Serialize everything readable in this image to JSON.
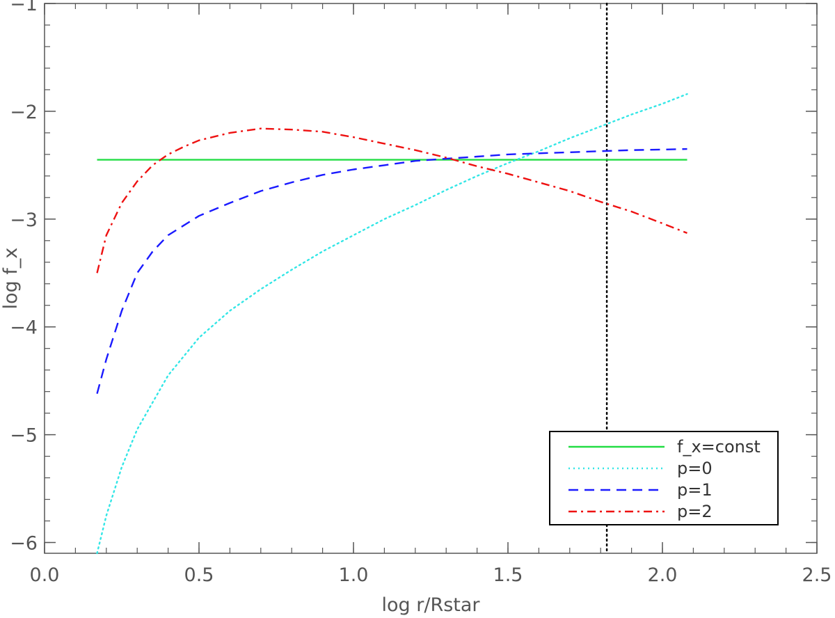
{
  "chart_data": {
    "type": "line",
    "title": "",
    "xlabel": "log r/Rstar",
    "ylabel": "log f_x",
    "xlim": [
      0.0,
      2.5
    ],
    "ylim": [
      -6.1,
      -1.0
    ],
    "x_ticks": [
      0.0,
      0.5,
      1.0,
      1.5,
      2.0,
      2.5
    ],
    "x_tick_labels": [
      "0.0",
      "0.5",
      "1.0",
      "1.5",
      "2.0",
      "2.5"
    ],
    "y_ticks": [
      -6,
      -5,
      -4,
      -3,
      -2,
      -1
    ],
    "y_tick_labels": [
      "−6",
      "−5",
      "−4",
      "−3",
      "−2",
      "−1"
    ],
    "grid": false,
    "legend_position": "bottom-right",
    "vertical_line": {
      "x": 1.82,
      "style": "dotted",
      "color": "#000000"
    },
    "series": [
      {
        "name": "f_x=const",
        "style": "solid",
        "color": "#22dd44",
        "x": [
          0.17,
          2.08
        ],
        "y": [
          -2.45,
          -2.45
        ]
      },
      {
        "name": "p=0",
        "style": "dotted",
        "color": "#33e6e6",
        "x": [
          0.17,
          0.2,
          0.25,
          0.3,
          0.4,
          0.5,
          0.6,
          0.7,
          0.8,
          0.9,
          1.0,
          1.1,
          1.2,
          1.3,
          1.4,
          1.5,
          1.6,
          1.7,
          1.8,
          1.9,
          2.0,
          2.08
        ],
        "y": [
          -6.1,
          -5.75,
          -5.3,
          -4.95,
          -4.45,
          -4.1,
          -3.85,
          -3.65,
          -3.47,
          -3.3,
          -3.15,
          -3.0,
          -2.87,
          -2.73,
          -2.6,
          -2.48,
          -2.37,
          -2.25,
          -2.14,
          -2.03,
          -1.93,
          -1.84
        ]
      },
      {
        "name": "p=1",
        "style": "dashed",
        "color": "#1a1aff",
        "x": [
          0.17,
          0.2,
          0.25,
          0.3,
          0.35,
          0.4,
          0.5,
          0.6,
          0.7,
          0.8,
          0.9,
          1.0,
          1.1,
          1.2,
          1.3,
          1.4,
          1.5,
          1.6,
          1.7,
          1.8,
          1.9,
          2.0,
          2.08
        ],
        "y": [
          -4.62,
          -4.3,
          -3.85,
          -3.5,
          -3.3,
          -3.15,
          -2.97,
          -2.85,
          -2.74,
          -2.66,
          -2.59,
          -2.54,
          -2.5,
          -2.46,
          -2.44,
          -2.42,
          -2.4,
          -2.39,
          -2.38,
          -2.37,
          -2.36,
          -2.355,
          -2.35
        ]
      },
      {
        "name": "p=2",
        "style": "dashdot",
        "color": "#ee1111",
        "x": [
          0.17,
          0.2,
          0.25,
          0.3,
          0.35,
          0.4,
          0.45,
          0.5,
          0.6,
          0.7,
          0.8,
          0.9,
          1.0,
          1.1,
          1.2,
          1.3,
          1.4,
          1.5,
          1.6,
          1.7,
          1.8,
          1.9,
          2.0,
          2.08
        ],
        "y": [
          -3.5,
          -3.15,
          -2.85,
          -2.65,
          -2.5,
          -2.4,
          -2.33,
          -2.27,
          -2.2,
          -2.16,
          -2.17,
          -2.19,
          -2.24,
          -2.3,
          -2.36,
          -2.43,
          -2.51,
          -2.58,
          -2.66,
          -2.74,
          -2.84,
          -2.93,
          -3.04,
          -3.13
        ]
      }
    ]
  }
}
